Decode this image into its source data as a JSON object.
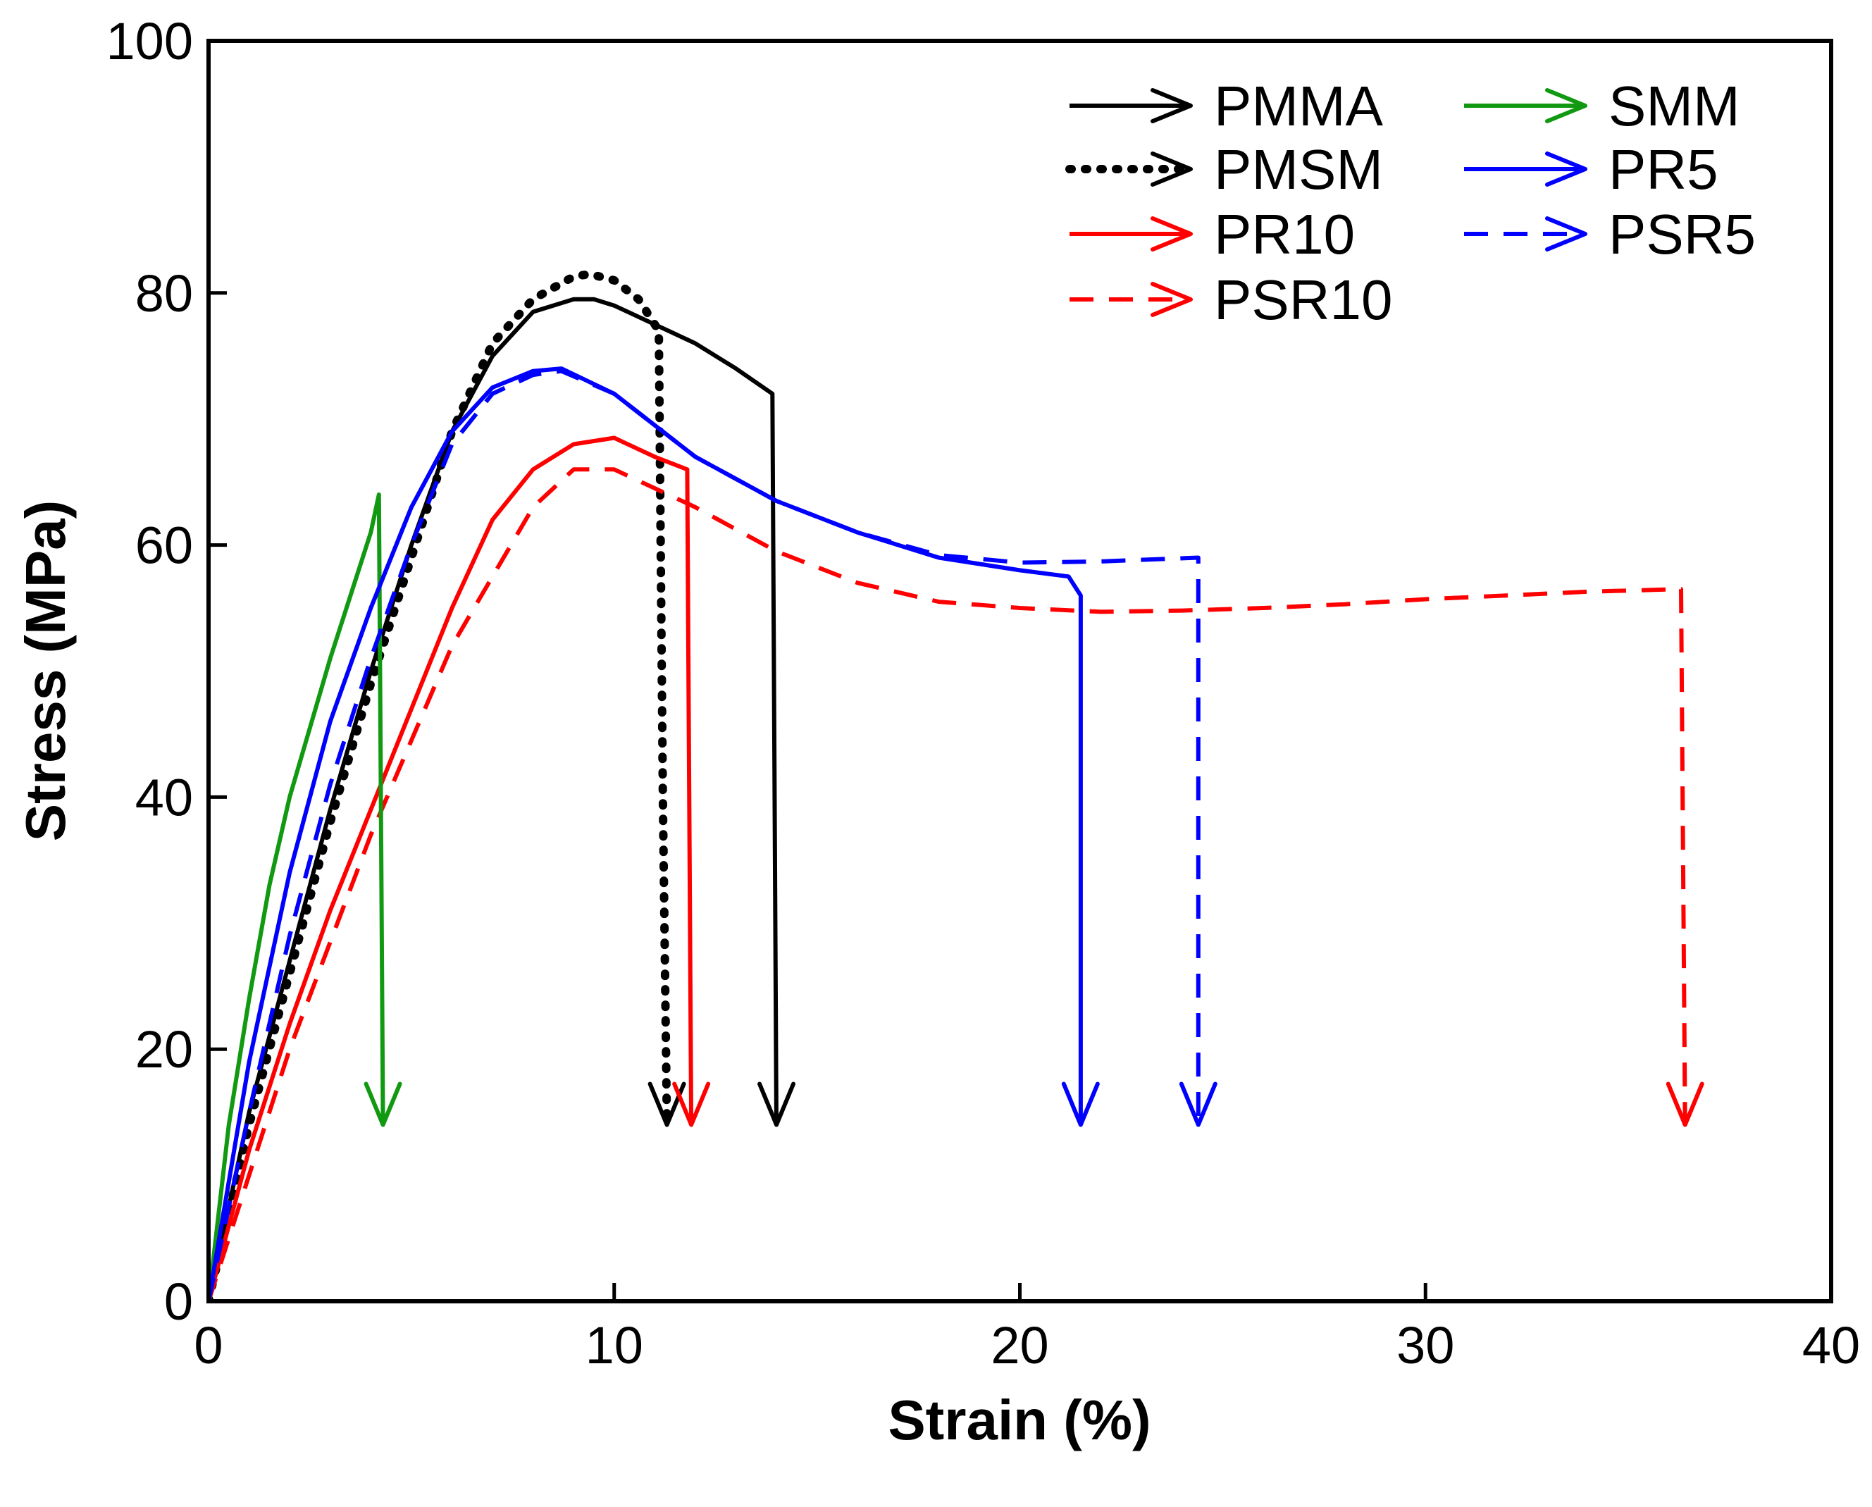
{
  "chart_data": {
    "type": "line",
    "title": "",
    "xlabel": "Strain (%)",
    "ylabel": "Stress (MPa)",
    "xlim": [
      0,
      40
    ],
    "ylim": [
      0,
      100
    ],
    "xticks": [
      0,
      10,
      20,
      30,
      40
    ],
    "yticks": [
      0,
      20,
      40,
      60,
      80,
      100
    ],
    "grid": false,
    "legend_position": "top-right",
    "series": [
      {
        "name": "PMMA",
        "color": "#000000",
        "style": "solid",
        "x": [
          0,
          1,
          2,
          3,
          4,
          5,
          6,
          7,
          8,
          9,
          9.5,
          10,
          11,
          12,
          13,
          13.9,
          14.0
        ],
        "y": [
          0,
          15,
          27,
          39,
          50,
          60,
          69,
          75,
          78.5,
          79.5,
          79.5,
          79,
          77.5,
          76,
          74,
          72,
          14
        ],
        "break_strain": 14.0
      },
      {
        "name": "PMSM",
        "color": "#000000",
        "style": "dotted",
        "x": [
          0,
          1,
          2,
          3,
          4,
          5,
          6,
          7,
          8,
          9,
          9.4,
          10,
          10.6,
          11.1,
          11.2,
          11.3
        ],
        "y": [
          0,
          14,
          26,
          38,
          49,
          59,
          69,
          76,
          79.5,
          81.3,
          81.5,
          81,
          79.5,
          77,
          40,
          14
        ],
        "break_strain": 11.3
      },
      {
        "name": "PR10",
        "color": "#ff0000",
        "style": "solid",
        "x": [
          0,
          1,
          2,
          3,
          4,
          5,
          6,
          7,
          8,
          9,
          10,
          11,
          11.8,
          11.9
        ],
        "y": [
          0,
          12,
          22,
          31,
          39,
          47,
          55,
          62,
          66,
          68,
          68.5,
          67,
          66,
          14
        ],
        "break_strain": 11.9
      },
      {
        "name": "PSR10",
        "color": "#ff0000",
        "style": "dashed",
        "x": [
          0,
          2,
          4,
          6,
          8,
          9,
          10,
          12,
          14,
          16,
          18,
          20,
          22,
          24,
          26,
          28,
          30,
          32,
          34,
          36.3,
          36.4
        ],
        "y": [
          0,
          20,
          37,
          52,
          63,
          66,
          66,
          63,
          59.5,
          57,
          55.5,
          55,
          54.7,
          54.8,
          55,
          55.3,
          55.7,
          56,
          56.3,
          56.5,
          14
        ],
        "break_strain": 36.4
      },
      {
        "name": "SMM",
        "color": "#119911",
        "style": "solid",
        "x": [
          0,
          0.5,
          1,
          1.5,
          2,
          3,
          4,
          4.2,
          4.3
        ],
        "y": [
          0,
          14,
          24,
          33,
          40,
          51,
          61,
          64,
          14
        ],
        "break_strain": 4.3
      },
      {
        "name": "PR5",
        "color": "#0000ff",
        "style": "solid",
        "x": [
          0,
          1,
          2,
          3,
          4,
          5,
          6,
          7,
          8,
          8.7,
          10,
          12,
          14,
          16,
          18,
          20,
          21.2,
          21.5,
          21.5
        ],
        "y": [
          0,
          19,
          34,
          46,
          55,
          63,
          69,
          72.5,
          73.8,
          74,
          72,
          67,
          63.5,
          61,
          59,
          58,
          57.5,
          56,
          14
        ],
        "break_strain": 21.5
      },
      {
        "name": "PSR5",
        "color": "#0000ff",
        "style": "dashed",
        "x": [
          0,
          1,
          2,
          3,
          4,
          5,
          6,
          7,
          8,
          8.7,
          10,
          12,
          14,
          16,
          18,
          20,
          22,
          24.4,
          24.4
        ],
        "y": [
          0,
          15,
          29,
          41,
          51,
          60,
          68,
          72,
          73.5,
          73.8,
          72,
          67,
          63.5,
          61,
          59.2,
          58.6,
          58.7,
          59,
          14
        ],
        "break_strain": 24.4
      }
    ]
  }
}
